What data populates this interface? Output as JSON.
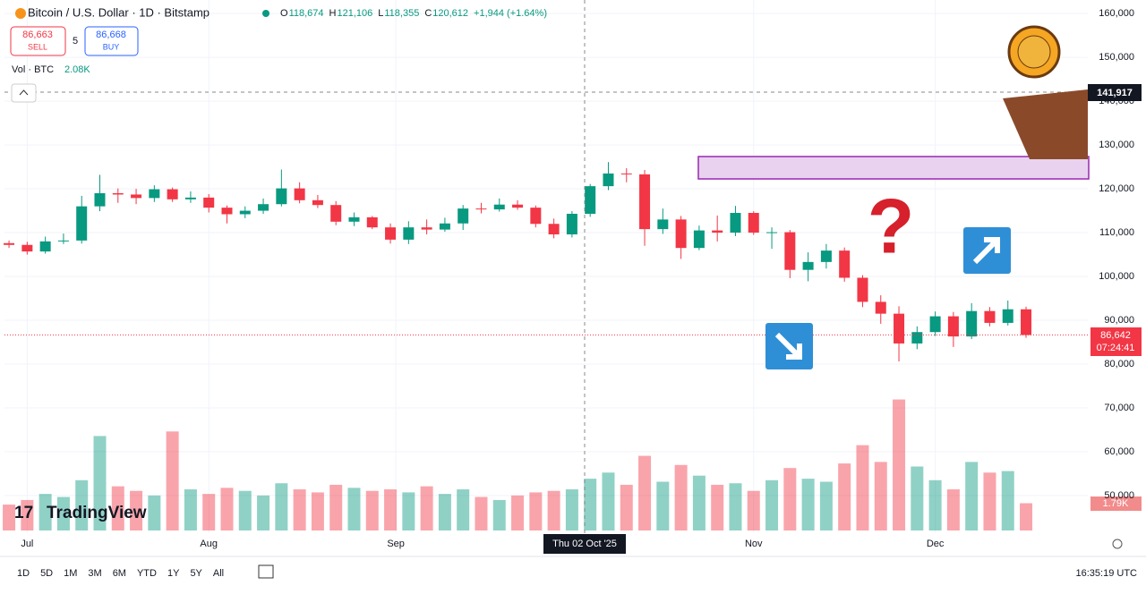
{
  "ui": {
    "symbol": "Bitcoin / U.S. Dollar · 1D · Bitstamp",
    "ohlc": [
      "O",
      "118,674",
      "H",
      "121,106",
      "L",
      "118,355",
      "C",
      "120,612",
      "+1,944 (+1.64%)"
    ],
    "sell_price": "86,663",
    "sell": "SELL",
    "spread": "5",
    "buy_price": "86,668",
    "buy": "BUY",
    "vol_label": "Vol · BTC",
    "vol_value": "2.08K",
    "crosshair_price": "141,917",
    "crosshair_date": "Thu 02 Oct '25",
    "last_price": "86,642",
    "countdown": "07:24:41",
    "last_volume": "1.79K",
    "logo": "TradingView",
    "question": "?",
    "toolbar": [
      "1D",
      "5D",
      "1M",
      "3M",
      "6M",
      "YTD",
      "1Y",
      "5Y",
      "All"
    ],
    "clock": "16:35:19 UTC"
  },
  "chart_data": {
    "type": "candlestick",
    "up_color": "#089981",
    "down_color": "#f23645",
    "xlim": [
      -0.25,
      59.4
    ],
    "ylim": [
      41400,
      163100
    ],
    "y2lim": [
      0,
      35000
    ],
    "xticks": [
      {
        "value": 1,
        "label": "Jul"
      },
      {
        "value": 11,
        "label": "Aug"
      },
      {
        "value": 21.3,
        "label": "Sep"
      },
      {
        "value": 41,
        "label": "Nov"
      },
      {
        "value": 51,
        "label": "Dec"
      }
    ],
    "yticks": [
      {
        "value": 50000,
        "label": "50,000"
      },
      {
        "value": 60000,
        "label": "60,000"
      },
      {
        "value": 70000,
        "label": "70,000"
      },
      {
        "value": 80000,
        "label": "80,000"
      },
      {
        "value": 90000,
        "label": "90,000"
      },
      {
        "value": 100000,
        "label": "100,000"
      },
      {
        "value": 110000,
        "label": "110,000"
      },
      {
        "value": 120000,
        "label": "120,000"
      },
      {
        "value": 130000,
        "label": "130,000"
      },
      {
        "value": 140000,
        "label": "140,000"
      },
      {
        "value": 150000,
        "label": "150,000"
      },
      {
        "value": 160000,
        "label": "160,000"
      }
    ],
    "close": [
      107200,
      105700,
      108000,
      108200,
      116000,
      119000,
      118700,
      117900,
      119900,
      117600,
      118000,
      115700,
      114200,
      115000,
      116500,
      120100,
      117400,
      116300,
      112500,
      113500,
      111200,
      108400,
      111200,
      110700,
      112100,
      115500,
      115300,
      116400,
      115700,
      112000,
      109600,
      114300,
      120600,
      123500,
      123300,
      110800,
      113000,
      106500,
      110500,
      110000,
      114500,
      110000,
      110100,
      101500,
      103300,
      105900,
      99700,
      94200,
      91500,
      84700,
      87300,
      90900,
      86300,
      92100,
      89400,
      92500,
      86642
    ],
    "open": [
      107600,
      107200,
      105700,
      108000,
      108200,
      116000,
      119000,
      118700,
      117900,
      119900,
      117600,
      118000,
      115700,
      114200,
      115000,
      116500,
      120100,
      117400,
      116300,
      112500,
      113500,
      111200,
      108400,
      111200,
      110700,
      112100,
      115500,
      115300,
      116400,
      115700,
      112000,
      109600,
      114300,
      120600,
      123500,
      123300,
      110800,
      113000,
      106500,
      110500,
      110000,
      114500,
      110000,
      110100,
      101500,
      103300,
      105900,
      99700,
      94200,
      91500,
      84700,
      87300,
      90900,
      86300,
      92100,
      89400,
      92500
    ],
    "high": [
      108200,
      107900,
      109100,
      109800,
      118400,
      123200,
      120100,
      120000,
      120800,
      120300,
      119400,
      118800,
      116200,
      116000,
      117800,
      124400,
      121500,
      118600,
      117200,
      114600,
      113800,
      112100,
      112600,
      113000,
      113400,
      116300,
      116800,
      117800,
      117400,
      116200,
      113200,
      114900,
      121100,
      126100,
      124700,
      124300,
      115500,
      113800,
      111600,
      113900,
      116100,
      114900,
      111200,
      110600,
      105500,
      107400,
      106600,
      100300,
      95700,
      93200,
      88600,
      92000,
      91900,
      93900,
      93000,
      94500,
      93100
    ],
    "low": [
      106500,
      105000,
      105200,
      107400,
      107500,
      114900,
      116800,
      116500,
      117000,
      117000,
      116800,
      114600,
      112100,
      113300,
      114300,
      116000,
      116700,
      115600,
      111700,
      111500,
      110800,
      107500,
      107400,
      109600,
      110200,
      110600,
      114400,
      114800,
      115200,
      111200,
      108700,
      108900,
      113600,
      119700,
      121500,
      107000,
      109700,
      104000,
      106000,
      108000,
      109200,
      109500,
      106300,
      99600,
      98900,
      101800,
      98800,
      93000,
      89200,
      80600,
      83400,
      86400,
      83900,
      85700,
      88600,
      88800,
      86000
    ],
    "volume": [
      1700,
      2000,
      2400,
      2200,
      3300,
      6200,
      2900,
      2600,
      2300,
      6500,
      2700,
      2400,
      2800,
      2600,
      2300,
      3100,
      2700,
      2500,
      3000,
      2800,
      2600,
      2700,
      2500,
      2900,
      2400,
      2700,
      2200,
      2000,
      2300,
      2500,
      2600,
      2700,
      3400,
      3800,
      3000,
      4900,
      3200,
      4300,
      3600,
      3000,
      3100,
      2600,
      3300,
      4100,
      3400,
      3200,
      4400,
      5600,
      4500,
      8600,
      4200,
      3300,
      2700,
      4500,
      3800,
      3900,
      1790
    ]
  }
}
